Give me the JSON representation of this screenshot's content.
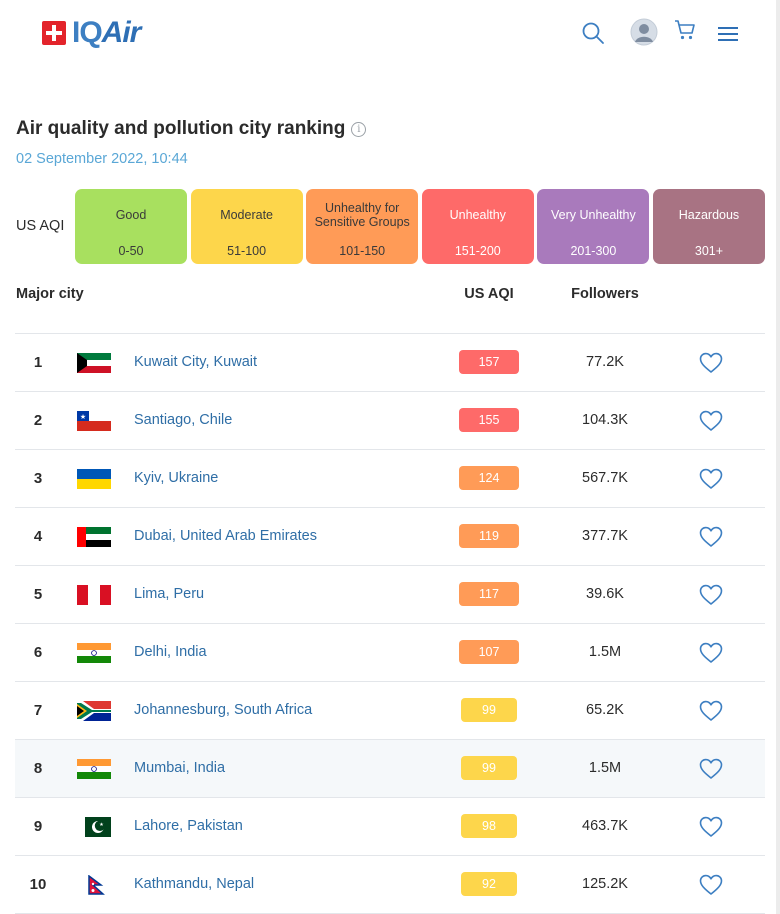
{
  "header": {
    "logo_iq": "IQ",
    "logo_air": "Air",
    "icons": [
      "search-icon",
      "user-avatar-icon",
      "cart-icon",
      "hamburger-menu-icon"
    ]
  },
  "page": {
    "title": "Air quality and pollution city ranking",
    "info_glyph": "i",
    "timestamp": "02 September 2022, 10:44"
  },
  "legend": {
    "label": "US AQI",
    "levels": [
      {
        "name": "Good",
        "range": "0-50",
        "color": "#a8e05f"
      },
      {
        "name": "Moderate",
        "range": "51-100",
        "color": "#fdd64b"
      },
      {
        "name": "Unhealthy for Sensitive Groups",
        "range": "101-150",
        "color": "#ff9b57"
      },
      {
        "name": "Unhealthy",
        "range": "151-200",
        "color": "#fe6a69"
      },
      {
        "name": "Very Unhealthy",
        "range": "201-300",
        "color": "#a97abc"
      },
      {
        "name": "Hazardous",
        "range": "301+",
        "color": "#a87383"
      }
    ]
  },
  "table": {
    "headers": {
      "city": "Major city",
      "aqi": "US AQI",
      "followers": "Followers"
    },
    "rows": [
      {
        "rank": "1",
        "city": "Kuwait City, Kuwait",
        "flag": "kuwait",
        "aqi": "157",
        "followers": "77.2K"
      },
      {
        "rank": "2",
        "city": "Santiago, Chile",
        "flag": "chile",
        "aqi": "155",
        "followers": "104.3K"
      },
      {
        "rank": "3",
        "city": "Kyiv, Ukraine",
        "flag": "ukraine",
        "aqi": "124",
        "followers": "567.7K"
      },
      {
        "rank": "4",
        "city": "Dubai, United Arab Emirates",
        "flag": "uae",
        "aqi": "119",
        "followers": "377.7K"
      },
      {
        "rank": "5",
        "city": "Lima, Peru",
        "flag": "peru",
        "aqi": "117",
        "followers": "39.6K"
      },
      {
        "rank": "6",
        "city": "Delhi, India",
        "flag": "india",
        "aqi": "107",
        "followers": "1.5M"
      },
      {
        "rank": "7",
        "city": "Johannesburg, South Africa",
        "flag": "south-africa",
        "aqi": "99",
        "followers": "65.2K"
      },
      {
        "rank": "8",
        "city": "Mumbai, India",
        "flag": "india",
        "aqi": "99",
        "followers": "1.5M"
      },
      {
        "rank": "9",
        "city": "Lahore, Pakistan",
        "flag": "pakistan",
        "aqi": "98",
        "followers": "463.7K"
      },
      {
        "rank": "10",
        "city": "Kathmandu, Nepal",
        "flag": "nepal",
        "aqi": "92",
        "followers": "125.2K"
      }
    ]
  },
  "colors": {
    "unhealthy_badge": "#fe6a69",
    "sensitive_badge": "#ff9b57",
    "moderate_badge": "#fdd64b",
    "link": "#2f6ea6",
    "accent": "#3d7fc2"
  }
}
